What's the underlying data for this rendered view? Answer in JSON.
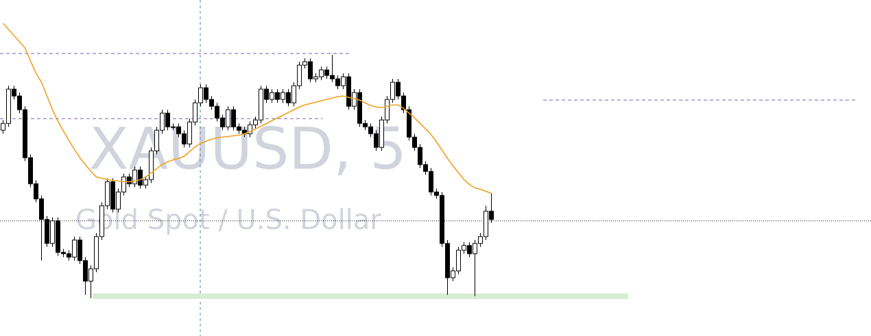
{
  "chart_data": {
    "type": "candlestick",
    "title": "XAUUSD, 5",
    "subtitle": "Gold Spot / U.S. Dollar",
    "ylim": [
      0,
      490
    ],
    "up_color": "#ffffff",
    "down_color": "#000000",
    "open": [
      300,
      310,
      360,
      350,
      330,
      260,
      222,
      200,
      170,
      135,
      168,
      122,
      120,
      115,
      140,
      110,
      80,
      98,
      145,
      190,
      225,
      185,
      210,
      232,
      222,
      242,
      220,
      228,
      270,
      300,
      325,
      305,
      305,
      295,
      280,
      312,
      340,
      362,
      345,
      335,
      318,
      305,
      330,
      305,
      300,
      295,
      308,
      315,
      360,
      345,
      355,
      345,
      355,
      340,
      365,
      395,
      400,
      375,
      378,
      388,
      380,
      375,
      365,
      378,
      335,
      355,
      310,
      305,
      295,
      275,
      315,
      345,
      370,
      350,
      330,
      290,
      275,
      250,
      240,
      210,
      205,
      135,
      85,
      95,
      125,
      132,
      120,
      135,
      145,
      182
    ],
    "high": [
      315,
      365,
      365,
      355,
      335,
      265,
      227,
      205,
      175,
      173,
      173,
      127,
      125,
      145,
      145,
      115,
      103,
      150,
      195,
      230,
      230,
      215,
      237,
      237,
      247,
      247,
      233,
      275,
      305,
      330,
      330,
      310,
      310,
      300,
      317,
      345,
      367,
      367,
      350,
      340,
      323,
      335,
      335,
      310,
      305,
      313,
      320,
      365,
      365,
      360,
      360,
      360,
      360,
      370,
      400,
      405,
      405,
      383,
      393,
      393,
      410,
      380,
      383,
      383,
      360,
      360,
      315,
      310,
      300,
      320,
      350,
      375,
      375,
      355,
      335,
      295,
      280,
      255,
      245,
      215,
      210,
      140,
      100,
      130,
      137,
      137,
      140,
      150,
      190,
      208
    ],
    "low": [
      295,
      305,
      345,
      325,
      255,
      217,
      195,
      110,
      130,
      130,
      117,
      115,
      110,
      110,
      105,
      60,
      55,
      93,
      140,
      185,
      180,
      180,
      205,
      217,
      217,
      215,
      215,
      223,
      265,
      295,
      300,
      300,
      290,
      275,
      275,
      307,
      335,
      340,
      330,
      313,
      300,
      300,
      300,
      295,
      290,
      290,
      303,
      310,
      340,
      340,
      340,
      340,
      335,
      335,
      360,
      390,
      370,
      370,
      373,
      375,
      370,
      360,
      360,
      330,
      330,
      305,
      300,
      290,
      270,
      270,
      310,
      340,
      345,
      325,
      285,
      270,
      245,
      235,
      205,
      200,
      130,
      60,
      80,
      90,
      120,
      115,
      58,
      130,
      140,
      165
    ],
    "close": [
      310,
      360,
      350,
      330,
      260,
      222,
      200,
      170,
      135,
      168,
      122,
      120,
      115,
      140,
      110,
      80,
      98,
      145,
      190,
      225,
      185,
      210,
      232,
      222,
      242,
      220,
      228,
      270,
      300,
      325,
      305,
      305,
      295,
      280,
      312,
      340,
      362,
      345,
      335,
      318,
      305,
      330,
      305,
      300,
      295,
      308,
      315,
      360,
      345,
      355,
      345,
      355,
      340,
      365,
      395,
      400,
      375,
      378,
      388,
      380,
      375,
      365,
      378,
      335,
      355,
      310,
      305,
      295,
      275,
      315,
      345,
      370,
      350,
      330,
      290,
      275,
      250,
      240,
      210,
      205,
      135,
      85,
      95,
      125,
      132,
      120,
      135,
      145,
      182,
      170
    ],
    "moving_average": {
      "color": "#f0a020",
      "values": [
        456,
        447,
        438,
        429,
        420,
        401,
        383,
        370,
        350,
        330,
        313,
        299,
        285,
        272,
        260,
        250,
        240,
        232,
        230,
        228,
        227,
        226,
        225,
        225,
        226,
        228,
        232,
        238,
        244,
        250,
        254,
        257,
        259,
        262,
        269,
        276,
        281,
        284,
        287,
        289,
        290,
        291,
        292,
        293,
        295,
        298,
        302,
        306,
        310,
        314,
        318,
        322,
        326,
        330,
        334,
        337,
        339,
        341,
        343,
        345,
        347,
        349,
        350,
        348,
        346,
        344,
        340,
        336,
        334,
        333,
        335,
        337,
        337,
        332,
        325,
        318,
        310,
        302,
        294,
        283,
        271,
        259,
        248,
        238,
        228,
        221,
        216,
        214,
        211,
        208
      ]
    },
    "levels": [
      {
        "value": 412,
        "color": "#7b5fa8",
        "style": "dashed"
      },
      {
        "value": 317,
        "color": "#7b5fa8",
        "style": "dashed"
      },
      {
        "value": 344,
        "color": "#7b5fa8",
        "style": "dashed"
      },
      {
        "value": 168,
        "color": "#000000",
        "style": "dotted"
      }
    ],
    "zone": {
      "value": 58,
      "color": "#d8ecd4"
    },
    "crosshair_color": "#5b7fb0"
  }
}
